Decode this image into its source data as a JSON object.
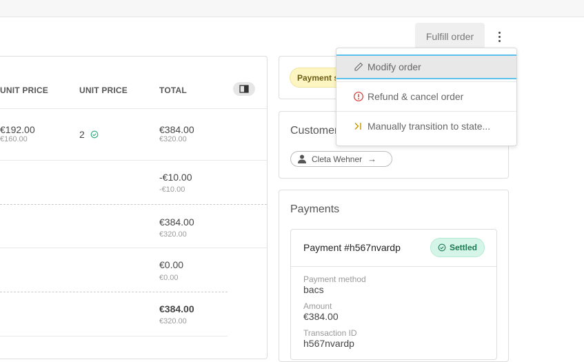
{
  "header": {
    "fulfill_label": "Fulfill order",
    "more_icon": "kebab-icon"
  },
  "menu": {
    "items": [
      {
        "label": "Modify order",
        "icon": "pencil-icon"
      },
      {
        "label": "Refund & cancel order",
        "icon": "alert-circle-icon",
        "icon_color": "#d0342c"
      },
      {
        "label": "Manually transition to state...",
        "icon": "step-forward-icon",
        "icon_color": "#c79a00"
      }
    ]
  },
  "lines": {
    "columns": [
      "UNIT PRICE",
      "UNIT PRICE",
      "TOTAL"
    ],
    "rows": [
      {
        "unit_price": "€192.00",
        "unit_price_sub": "€160.00",
        "quantity": "2",
        "total": "€384.00",
        "total_sub": "€320.00"
      },
      {
        "total": "-€10.00",
        "total_sub": "-€10.00"
      },
      {
        "total": "€384.00",
        "total_sub": "€320.00"
      },
      {
        "total": "€0.00",
        "total_sub": "€0.00"
      },
      {
        "total": "€384.00",
        "total_sub": "€320.00"
      }
    ]
  },
  "state": {
    "badge": "Payment settled"
  },
  "customer": {
    "title": "Customer",
    "name": "Cleta Wehner"
  },
  "payments": {
    "title": "Payments",
    "payment_title": "Payment #h567nvardp",
    "status": "Settled",
    "status_color": "#1d7a52",
    "fields": [
      {
        "label": "Payment method",
        "value": "bacs"
      },
      {
        "label": "Amount",
        "value": "€384.00"
      },
      {
        "label": "Transaction ID",
        "value": "h567nvardp"
      }
    ]
  }
}
